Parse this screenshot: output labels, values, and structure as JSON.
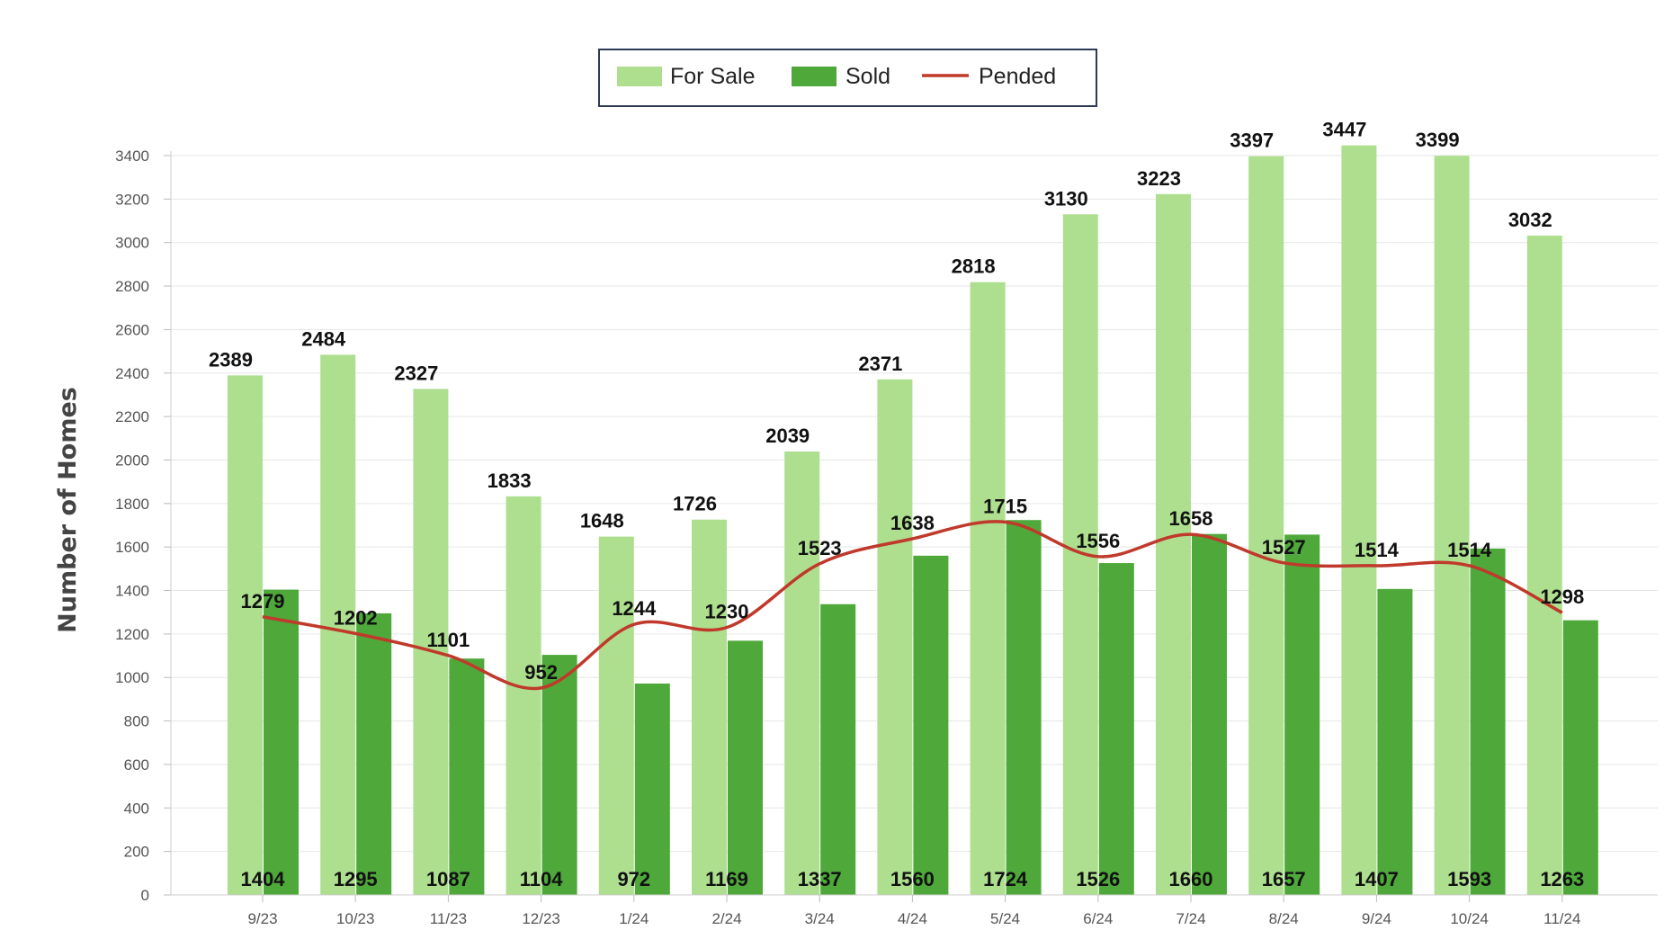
{
  "chart_data": {
    "type": "bar",
    "ylabel": "Number of Homes",
    "xlabel": "",
    "ylim": [
      0,
      3400
    ],
    "y_ticks": [
      0,
      200,
      400,
      600,
      800,
      1000,
      1200,
      1400,
      1600,
      1800,
      2000,
      2200,
      2400,
      2600,
      2800,
      3000,
      3200,
      3400
    ],
    "grid": true,
    "legend_position": "top-center",
    "categories": [
      "9/23",
      "10/23",
      "11/23",
      "12/23",
      "1/24",
      "2/24",
      "3/24",
      "4/24",
      "5/24",
      "6/24",
      "7/24",
      "8/24",
      "9/24",
      "10/24",
      "11/24"
    ],
    "series": [
      {
        "name": "For Sale",
        "kind": "bar",
        "color": "#addf8f",
        "values": [
          2389,
          2484,
          2327,
          1833,
          1648,
          1726,
          2039,
          2371,
          2818,
          3130,
          3223,
          3397,
          3447,
          3399,
          3032
        ]
      },
      {
        "name": "Sold",
        "kind": "bar",
        "color": "#4ea83a",
        "values": [
          1404,
          1295,
          1087,
          1104,
          972,
          1169,
          1337,
          1560,
          1724,
          1526,
          1660,
          1657,
          1407,
          1593,
          1263
        ]
      },
      {
        "name": "Pended",
        "kind": "line",
        "color": "#c0392b",
        "values": [
          1279,
          1202,
          1101,
          952,
          1244,
          1230,
          1523,
          1638,
          1715,
          1556,
          1658,
          1527,
          1514,
          1514,
          1298
        ]
      }
    ]
  }
}
